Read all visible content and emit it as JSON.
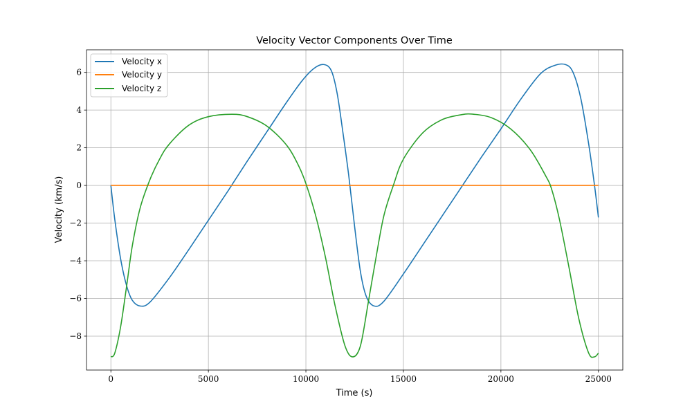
{
  "chart_data": {
    "type": "line",
    "title": "Velocity Vector Components Over Time",
    "xlabel": "Time (s)",
    "ylabel": "Velocity (km/s)",
    "xlim": [
      -1250,
      26250
    ],
    "ylim": [
      -9.8,
      7.2
    ],
    "xticks": [
      0,
      5000,
      10000,
      15000,
      20000,
      25000
    ],
    "xtick_labels": [
      "0",
      "5000",
      "10000",
      "15000",
      "20000",
      "25000"
    ],
    "yticks": [
      -8,
      -6,
      -4,
      -2,
      0,
      2,
      4,
      6
    ],
    "ytick_labels": [
      "−8",
      "−6",
      "−4",
      "−2",
      "0",
      "2",
      "4",
      "6"
    ],
    "grid": true,
    "legend_position": "upper-left",
    "series": [
      {
        "name": "Velocity x",
        "color": "#1f77b4",
        "points": [
          [
            0,
            0
          ],
          [
            200,
            -1.8
          ],
          [
            500,
            -3.9
          ],
          [
            800,
            -5.3
          ],
          [
            1100,
            -6.1
          ],
          [
            1500,
            -6.4
          ],
          [
            2000,
            -6.2
          ],
          [
            3000,
            -4.9
          ],
          [
            4000,
            -3.4
          ],
          [
            5000,
            -1.85
          ],
          [
            6000,
            -0.3
          ],
          [
            7000,
            1.3
          ],
          [
            8000,
            2.85
          ],
          [
            9000,
            4.4
          ],
          [
            9800,
            5.55
          ],
          [
            10400,
            6.2
          ],
          [
            10900,
            6.42
          ],
          [
            11300,
            6.1
          ],
          [
            11600,
            4.9
          ],
          [
            11900,
            2.8
          ],
          [
            12200,
            0.5
          ],
          [
            12500,
            -2.2
          ],
          [
            12800,
            -4.6
          ],
          [
            13100,
            -5.9
          ],
          [
            13500,
            -6.4
          ],
          [
            14000,
            -6.15
          ],
          [
            15000,
            -4.7
          ],
          [
            16000,
            -3.15
          ],
          [
            17000,
            -1.6
          ],
          [
            18000,
            -0.05
          ],
          [
            19000,
            1.5
          ],
          [
            20000,
            3.0
          ],
          [
            21000,
            4.55
          ],
          [
            22000,
            5.9
          ],
          [
            22700,
            6.35
          ],
          [
            23300,
            6.42
          ],
          [
            23700,
            6.0
          ],
          [
            24100,
            4.6
          ],
          [
            24500,
            2.2
          ],
          [
            24800,
            0.0
          ],
          [
            25000,
            -1.7
          ]
        ]
      },
      {
        "name": "Velocity y",
        "color": "#ff7f0e",
        "points": [
          [
            0,
            0
          ],
          [
            25000,
            0
          ]
        ]
      },
      {
        "name": "Velocity z",
        "color": "#2ca02c",
        "points": [
          [
            0,
            -9.1
          ],
          [
            200,
            -8.9
          ],
          [
            500,
            -7.5
          ],
          [
            800,
            -5.4
          ],
          [
            1100,
            -3.2
          ],
          [
            1500,
            -1.2
          ],
          [
            2000,
            0.3
          ],
          [
            2500,
            1.4
          ],
          [
            3000,
            2.2
          ],
          [
            4000,
            3.2
          ],
          [
            5000,
            3.65
          ],
          [
            6200,
            3.78
          ],
          [
            7000,
            3.65
          ],
          [
            8000,
            3.15
          ],
          [
            9000,
            2.15
          ],
          [
            9600,
            1.1
          ],
          [
            10000,
            0.1
          ],
          [
            10500,
            -1.6
          ],
          [
            11000,
            -3.8
          ],
          [
            11500,
            -6.4
          ],
          [
            12000,
            -8.5
          ],
          [
            12400,
            -9.1
          ],
          [
            12800,
            -8.5
          ],
          [
            13200,
            -6.2
          ],
          [
            13600,
            -3.8
          ],
          [
            14000,
            -1.6
          ],
          [
            14500,
            0.05
          ],
          [
            15000,
            1.4
          ],
          [
            16000,
            2.8
          ],
          [
            17000,
            3.5
          ],
          [
            18000,
            3.76
          ],
          [
            18600,
            3.78
          ],
          [
            19500,
            3.6
          ],
          [
            20500,
            3.0
          ],
          [
            21500,
            1.9
          ],
          [
            22300,
            0.5
          ],
          [
            22600,
            -0.2
          ],
          [
            23000,
            -1.8
          ],
          [
            23500,
            -4.4
          ],
          [
            24000,
            -7.1
          ],
          [
            24500,
            -8.9
          ],
          [
            24800,
            -9.1
          ],
          [
            25000,
            -8.9
          ]
        ]
      }
    ]
  }
}
